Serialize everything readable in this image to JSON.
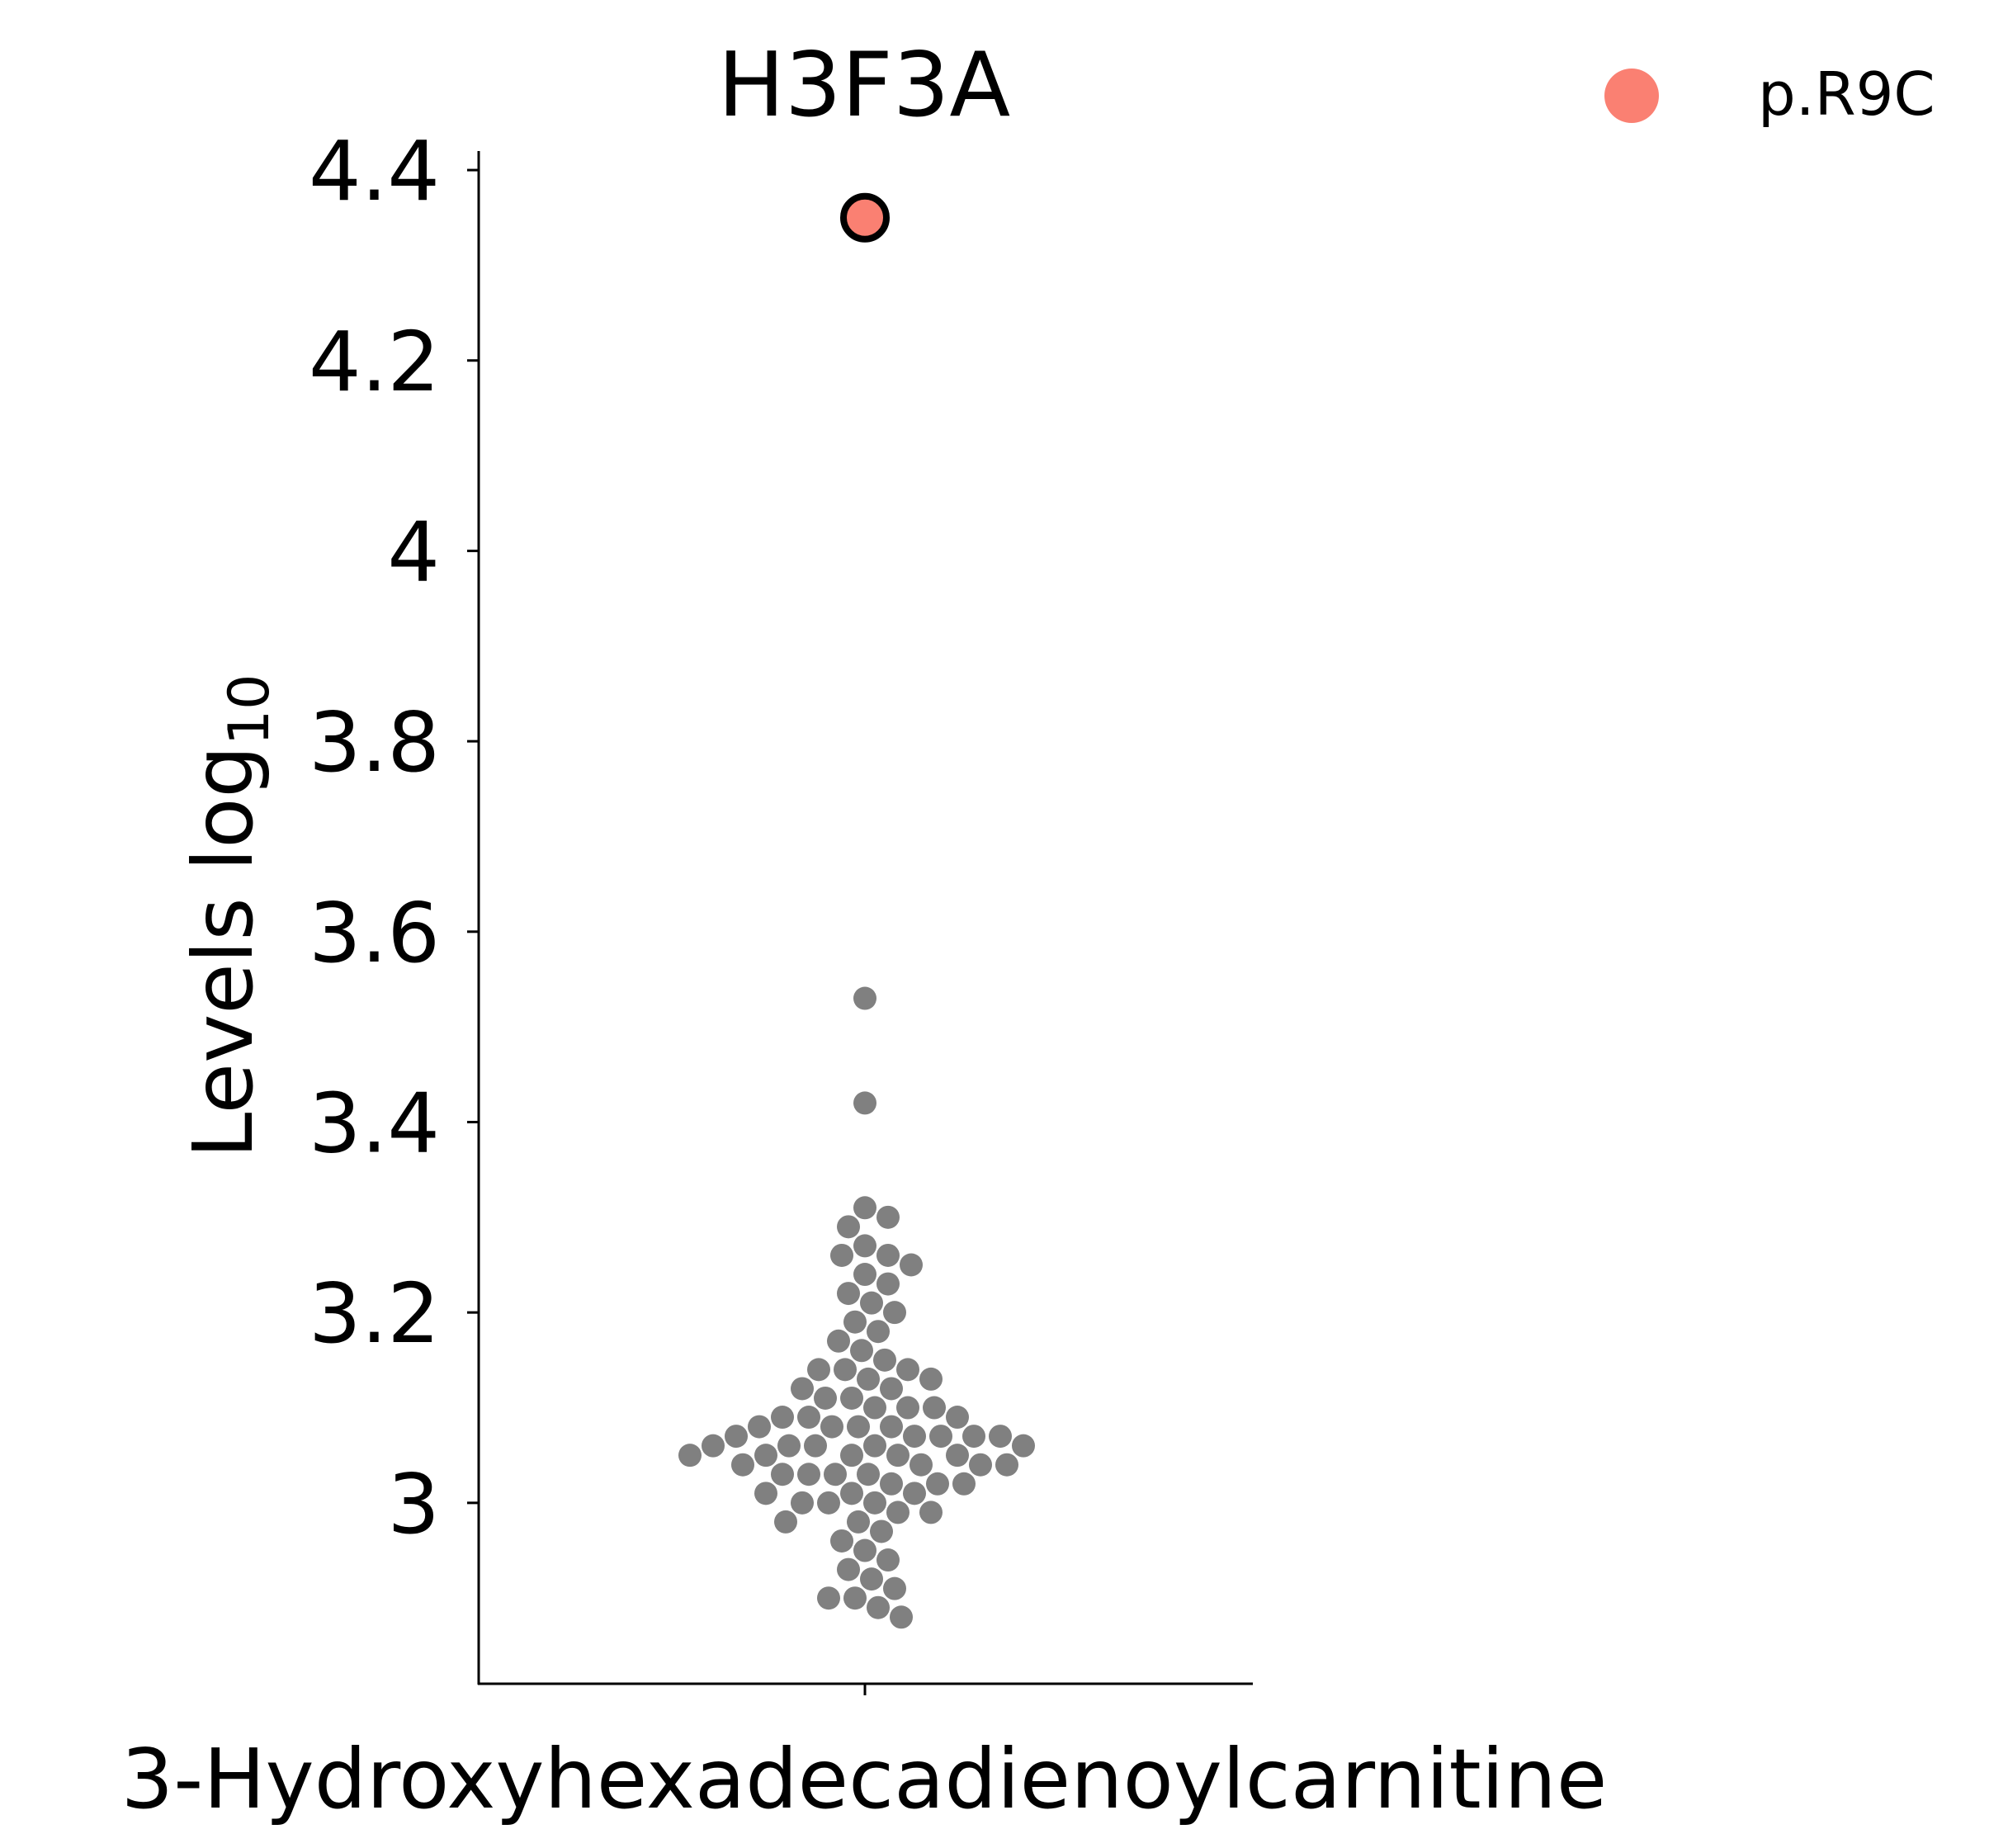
{
  "chart_data": {
    "type": "scatter",
    "subtype": "swarm",
    "title": "H3F3A",
    "xlabel": "3-Hydroxyhexadecadienoylcarnitine",
    "ylabel": "Levels log",
    "ylabel_subscript": "10",
    "ylim": [
      2.81,
      4.42
    ],
    "yticks": [
      3.0,
      3.2,
      3.4,
      3.6,
      3.8,
      4.0,
      4.2,
      4.4
    ],
    "ytick_labels": [
      "3",
      "3.2",
      "3.4",
      "3.6",
      "3.8",
      "4",
      "4.2",
      "4.4"
    ],
    "categories": [
      "3-Hydroxyhexadecadienoylcarnitine"
    ],
    "grid": false,
    "legend": {
      "placement": "top-right"
    },
    "colors": {
      "highlight": "#fa8072",
      "highlight_edge": "#000000",
      "background_points": "#808080",
      "axis": "#000000"
    },
    "series": [
      {
        "name": "p.R9C",
        "role": "highlight",
        "values": [
          4.35
        ]
      },
      {
        "role": "background",
        "values": [
          3.53,
          3.42,
          3.31,
          3.3,
          3.29,
          3.27,
          3.26,
          3.26,
          3.25,
          3.24,
          3.23,
          3.22,
          3.21,
          3.2,
          3.19,
          3.18,
          3.17,
          3.16,
          3.15,
          3.14,
          3.14,
          3.14,
          3.13,
          3.13,
          3.12,
          3.12,
          3.11,
          3.11,
          3.1,
          3.1,
          3.1,
          3.09,
          3.09,
          3.09,
          3.08,
          3.08,
          3.08,
          3.08,
          3.07,
          3.07,
          3.07,
          3.07,
          3.07,
          3.06,
          3.06,
          3.06,
          3.06,
          3.06,
          3.05,
          3.05,
          3.05,
          3.05,
          3.05,
          3.04,
          3.04,
          3.04,
          3.04,
          3.03,
          3.03,
          3.03,
          3.03,
          3.02,
          3.02,
          3.02,
          3.01,
          3.01,
          3.01,
          3.0,
          3.0,
          3.0,
          2.99,
          2.99,
          2.98,
          2.98,
          2.97,
          2.96,
          2.95,
          2.94,
          2.93,
          2.92,
          2.91,
          2.9,
          2.9,
          2.89,
          2.88
        ]
      }
    ]
  }
}
